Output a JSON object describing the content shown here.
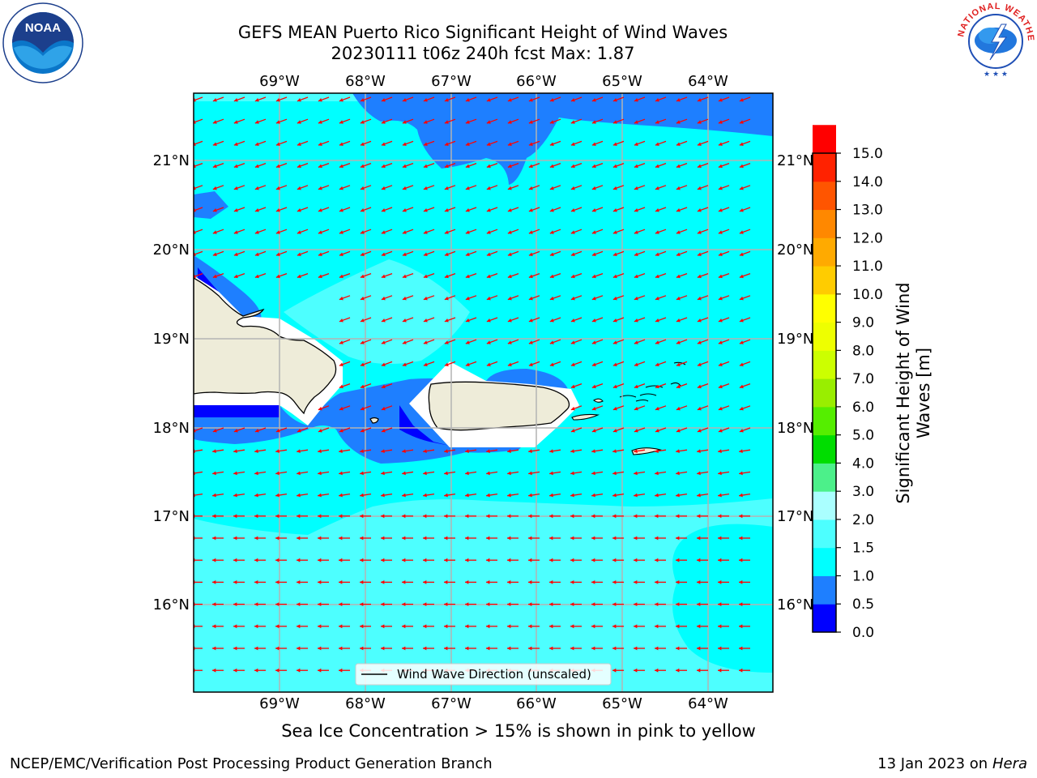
{
  "title": {
    "line1": "GEFS MEAN Puerto Rico Significant Height of Wind Waves",
    "line2": "20230111 t06z 240h fcst   Max: 1.87"
  },
  "map": {
    "lon_ticks": [
      "69°W",
      "68°W",
      "67°W",
      "66°W",
      "65°W",
      "64°W"
    ],
    "lat_ticks": [
      "21°N",
      "20°N",
      "19°N",
      "18°N",
      "17°N",
      "16°N"
    ],
    "legend_label": "Wind Wave Direction (unscaled)",
    "arrow_direction": "southwest (trade-wind easterlies)",
    "land_color": "#eeecd9"
  },
  "colorbar": {
    "title_line1": "Significant Height of Wind",
    "title_line2": "Waves [m]",
    "tick_labels": [
      "0.0",
      "0.5",
      "1.0",
      "1.5",
      "2.0",
      "3.0",
      "4.0",
      "5.0",
      "6.0",
      "7.0",
      "8.0",
      "9.0",
      "10.0",
      "11.0",
      "12.0",
      "13.0",
      "14.0",
      "15.0"
    ],
    "colors": [
      "#0000ff",
      "#1e7fff",
      "#00ffff",
      "#4dffff",
      "#aaffff",
      "#4cf08a",
      "#00dd00",
      "#55ee00",
      "#99ee00",
      "#ccff00",
      "#eeff00",
      "#ffff00",
      "#ffcc00",
      "#ffaa00",
      "#ff8800",
      "#ff5500",
      "#ff2200",
      "#ff0000"
    ]
  },
  "ice_note": "Sea Ice Concentration > 15% is shown in pink to yellow",
  "footer": {
    "left": "NCEP/EMC/Verification Post Processing Product Generation Branch",
    "right_date": "13 Jan 2023 on ",
    "right_host": "Hera"
  },
  "logos": {
    "noaa_text": "NOAA",
    "nws_text": "NATIONAL WEATHER SERVICE"
  }
}
